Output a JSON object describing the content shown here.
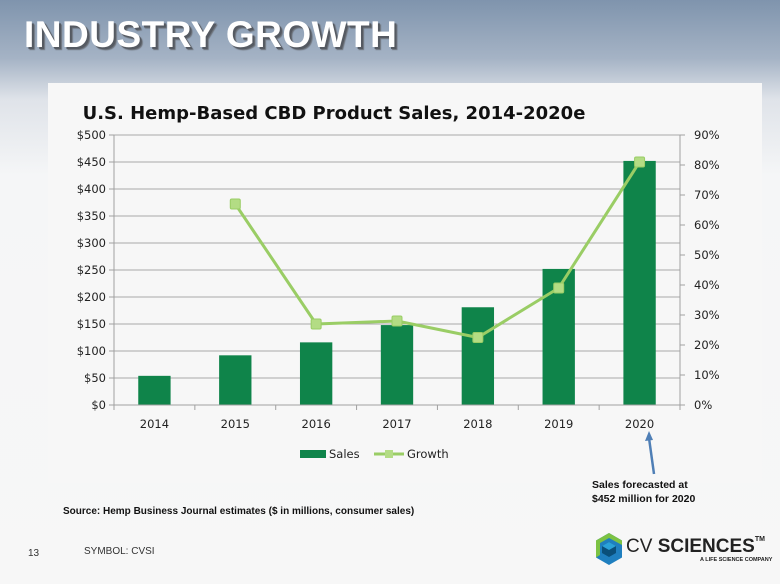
{
  "slide": {
    "title": "INDUSTRY GROWTH",
    "page_number": "13",
    "symbol": "SYMBOL: CVSI",
    "source": "Source:  Hemp Business  Journal estimates ($ in millions, consumer sales)",
    "annotation_line1": "Sales forecasted at",
    "annotation_line2": "$452 million for 2020",
    "logo": {
      "name_light": "CV ",
      "name_bold": "SCIENCES",
      "trademark": "TM",
      "tagline": "A LIFE SCIENCE COMPANY"
    }
  },
  "colors": {
    "sales_bar": "#0f844a",
    "growth_line": "#9acd65",
    "growth_marker": "#b3dc84",
    "gridline": "#a9a9a9",
    "annotation_arrow": "#4f7fb6"
  },
  "chart_data": {
    "type": "bar",
    "title": "U.S. Hemp-Based CBD Product Sales, 2014-2020e",
    "categories": [
      "2014",
      "2015",
      "2016",
      "2017",
      "2018",
      "2019",
      "2020"
    ],
    "series": [
      {
        "name": "Sales",
        "type": "bar",
        "axis": "left",
        "values": [
          54,
          92,
          116,
          148,
          181,
          252,
          452
        ]
      },
      {
        "name": "Growth",
        "type": "line",
        "axis": "right",
        "values": [
          null,
          67,
          27,
          28,
          22.5,
          39,
          81
        ]
      }
    ],
    "left_axis": {
      "ylim": [
        0,
        500
      ],
      "ticks": [
        0,
        50,
        100,
        150,
        200,
        250,
        300,
        350,
        400,
        450,
        500
      ],
      "tick_labels": [
        "$0",
        "$50",
        "$100",
        "$150",
        "$200",
        "$250",
        "$300",
        "$350",
        "$400",
        "$450",
        "$500"
      ]
    },
    "right_axis": {
      "ylim": [
        0,
        90
      ],
      "ticks": [
        0,
        10,
        20,
        30,
        40,
        50,
        60,
        70,
        80,
        90
      ],
      "tick_labels": [
        "0%",
        "10%",
        "20%",
        "30%",
        "40%",
        "50%",
        "60%",
        "70%",
        "80%",
        "90%"
      ]
    },
    "xlabel": "",
    "ylabel": "",
    "grid": true,
    "legend": {
      "position": "bottom",
      "entries": [
        "Sales",
        "Growth"
      ]
    }
  }
}
